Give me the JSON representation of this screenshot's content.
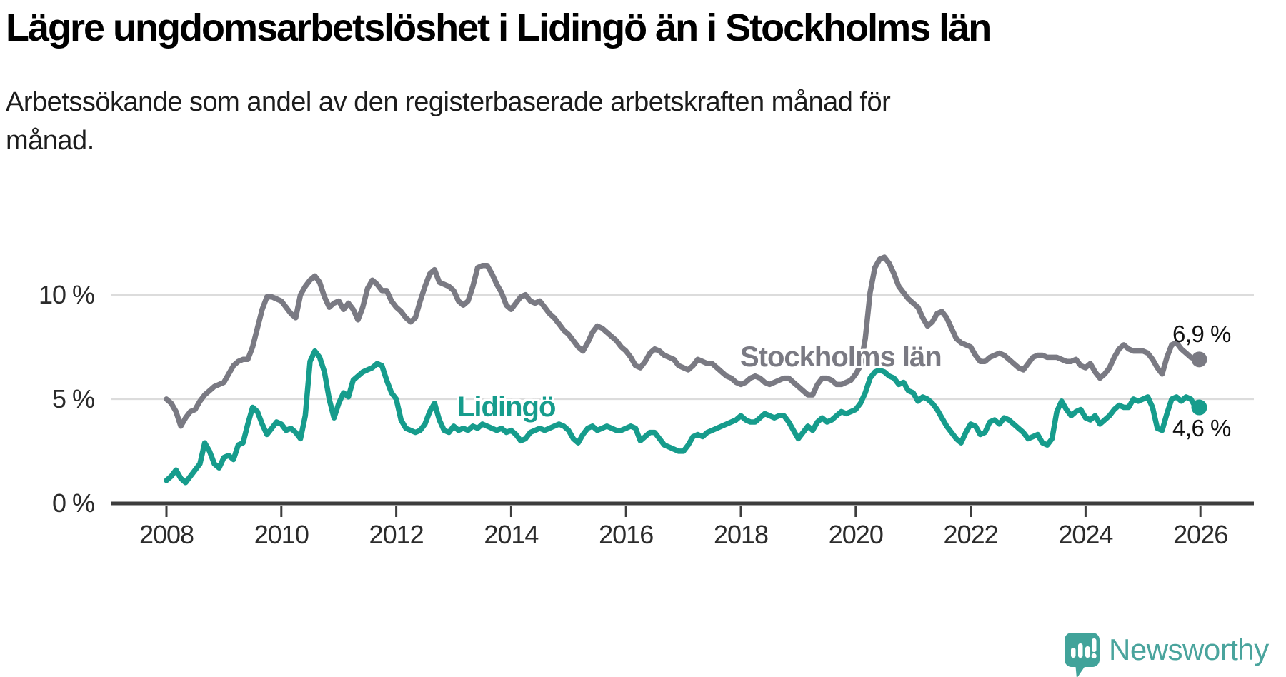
{
  "header": {
    "title": "Lägre ungdomsarbetslöshet i Lidingö än i Stockholms län",
    "subtitle_lines": [
      "Arbetssökande som andel av den registerbaserade arbetskraften månad för",
      "månad."
    ]
  },
  "footer": {
    "brand": "Newsworthy"
  },
  "colors": {
    "stockholm_line": "#7a7a83",
    "lidingo_line": "#169c8c",
    "gridline": "#dcdcdc",
    "axis": "#3d3d3d",
    "tick_text": "#2b2b2b",
    "value_text": "#111111",
    "logo_teal": "#41a39a"
  },
  "chart_data": {
    "type": "line",
    "unit": "%",
    "title": "Lägre ungdomsarbetslöshet i Lidingö än i Stockholms län",
    "xlabel": "",
    "ylabel": "",
    "grid": true,
    "legend_position": "inline-labels",
    "x_axis": {
      "tick_years": [
        2008,
        2010,
        2012,
        2014,
        2016,
        2018,
        2020,
        2022,
        2024,
        2026
      ]
    },
    "y_axis": {
      "range": [
        0,
        12.3
      ],
      "ticks": [
        {
          "value": 0,
          "label": "0 %"
        },
        {
          "value": 5,
          "label": "5 %"
        },
        {
          "value": 10,
          "label": "10 %"
        }
      ]
    },
    "series": [
      {
        "name": "Stockholms län",
        "color": "#7a7a83",
        "start_year": 2008,
        "points_per_year": 12,
        "end_value": 6.9,
        "end_label": "6,9 %",
        "values": [
          5.0,
          4.8,
          4.4,
          3.7,
          4.1,
          4.4,
          4.5,
          4.9,
          5.2,
          5.4,
          5.6,
          5.7,
          5.8,
          6.2,
          6.6,
          6.8,
          6.9,
          6.9,
          7.5,
          8.4,
          9.3,
          9.9,
          9.9,
          9.8,
          9.7,
          9.4,
          9.1,
          8.9,
          10.0,
          10.4,
          10.7,
          10.9,
          10.6,
          9.9,
          9.4,
          9.6,
          9.7,
          9.3,
          9.6,
          9.3,
          8.8,
          9.4,
          10.3,
          10.7,
          10.5,
          10.2,
          10.2,
          9.7,
          9.4,
          9.2,
          8.9,
          8.7,
          8.9,
          9.7,
          10.4,
          11.0,
          11.2,
          10.6,
          10.5,
          10.4,
          10.2,
          9.7,
          9.5,
          9.7,
          10.4,
          11.3,
          11.4,
          11.4,
          11.0,
          10.5,
          10.1,
          9.5,
          9.3,
          9.6,
          9.9,
          10.0,
          9.7,
          9.6,
          9.7,
          9.4,
          9.1,
          8.9,
          8.6,
          8.3,
          8.1,
          7.8,
          7.5,
          7.3,
          7.7,
          8.2,
          8.5,
          8.4,
          8.2,
          8.0,
          7.8,
          7.5,
          7.3,
          7.0,
          6.6,
          6.5,
          6.8,
          7.2,
          7.4,
          7.3,
          7.1,
          7.0,
          6.9,
          6.6,
          6.5,
          6.4,
          6.6,
          6.9,
          6.8,
          6.7,
          6.7,
          6.5,
          6.3,
          6.1,
          6.0,
          5.8,
          5.7,
          5.8,
          6.0,
          6.1,
          6.0,
          5.8,
          5.7,
          5.8,
          5.9,
          6.0,
          6.0,
          5.8,
          5.6,
          5.4,
          5.2,
          5.2,
          5.7,
          6.0,
          6.0,
          5.9,
          5.7,
          5.7,
          5.8,
          5.9,
          6.2,
          6.6,
          7.9,
          10.1,
          11.3,
          11.7,
          11.8,
          11.5,
          11.0,
          10.4,
          10.1,
          9.8,
          9.6,
          9.4,
          8.9,
          8.5,
          8.7,
          9.1,
          9.2,
          8.9,
          8.4,
          7.9,
          7.7,
          7.6,
          7.5,
          7.1,
          6.8,
          6.8,
          7.0,
          7.1,
          7.2,
          7.1,
          6.9,
          6.7,
          6.5,
          6.4,
          6.7,
          7.0,
          7.1,
          7.1,
          7.0,
          7.0,
          7.0,
          6.9,
          6.8,
          6.8,
          6.9,
          6.6,
          6.5,
          6.7,
          6.3,
          6.0,
          6.2,
          6.5,
          7.0,
          7.4,
          7.6,
          7.4,
          7.3,
          7.3,
          7.3,
          7.2,
          6.9,
          6.5,
          6.2,
          7.0,
          7.6,
          7.7,
          7.4,
          7.2,
          7.0,
          6.9
        ]
      },
      {
        "name": "Lidingö",
        "color": "#169c8c",
        "start_year": 2008,
        "points_per_year": 12,
        "end_value": 4.6,
        "end_label": "4,6 %",
        "values": [
          1.1,
          1.3,
          1.6,
          1.2,
          1.0,
          1.3,
          1.6,
          1.9,
          2.9,
          2.5,
          1.9,
          1.7,
          2.2,
          2.3,
          2.1,
          2.8,
          2.9,
          3.8,
          4.6,
          4.4,
          3.8,
          3.3,
          3.6,
          3.9,
          3.8,
          3.5,
          3.6,
          3.4,
          3.1,
          4.2,
          6.8,
          7.3,
          7.0,
          6.3,
          5.0,
          4.1,
          4.8,
          5.3,
          5.1,
          5.9,
          6.1,
          6.3,
          6.4,
          6.5,
          6.7,
          6.6,
          5.9,
          5.3,
          5.0,
          4.0,
          3.6,
          3.5,
          3.4,
          3.5,
          3.8,
          4.4,
          4.8,
          4.0,
          3.5,
          3.4,
          3.7,
          3.5,
          3.6,
          3.5,
          3.7,
          3.6,
          3.8,
          3.7,
          3.6,
          3.5,
          3.6,
          3.4,
          3.5,
          3.3,
          3.0,
          3.1,
          3.4,
          3.5,
          3.6,
          3.5,
          3.6,
          3.7,
          3.8,
          3.7,
          3.5,
          3.1,
          2.9,
          3.3,
          3.6,
          3.7,
          3.5,
          3.6,
          3.7,
          3.6,
          3.5,
          3.5,
          3.6,
          3.7,
          3.6,
          3.0,
          3.2,
          3.4,
          3.4,
          3.1,
          2.8,
          2.7,
          2.6,
          2.5,
          2.5,
          2.8,
          3.2,
          3.3,
          3.2,
          3.4,
          3.5,
          3.6,
          3.7,
          3.8,
          3.9,
          4.0,
          4.2,
          4.0,
          3.9,
          3.9,
          4.1,
          4.3,
          4.2,
          4.1,
          4.2,
          4.2,
          3.9,
          3.5,
          3.1,
          3.4,
          3.7,
          3.5,
          3.9,
          4.1,
          3.9,
          4.0,
          4.2,
          4.4,
          4.3,
          4.4,
          4.5,
          4.8,
          5.3,
          6.0,
          6.3,
          6.4,
          6.3,
          6.1,
          6.0,
          5.7,
          5.8,
          5.4,
          5.3,
          4.9,
          5.1,
          5.0,
          4.8,
          4.5,
          4.1,
          3.7,
          3.4,
          3.1,
          2.9,
          3.4,
          3.8,
          3.7,
          3.3,
          3.4,
          3.9,
          4.0,
          3.8,
          4.1,
          4.0,
          3.8,
          3.6,
          3.4,
          3.1,
          3.2,
          3.3,
          2.9,
          2.8,
          3.1,
          4.4,
          4.9,
          4.5,
          4.2,
          4.4,
          4.5,
          4.1,
          4.0,
          4.2,
          3.8,
          4.0,
          4.2,
          4.5,
          4.7,
          4.6,
          4.6,
          5.0,
          4.9,
          5.0,
          5.1,
          4.6,
          3.6,
          3.5,
          4.3,
          5.0,
          5.1,
          4.9,
          5.1,
          5.0,
          4.6
        ]
      }
    ]
  }
}
